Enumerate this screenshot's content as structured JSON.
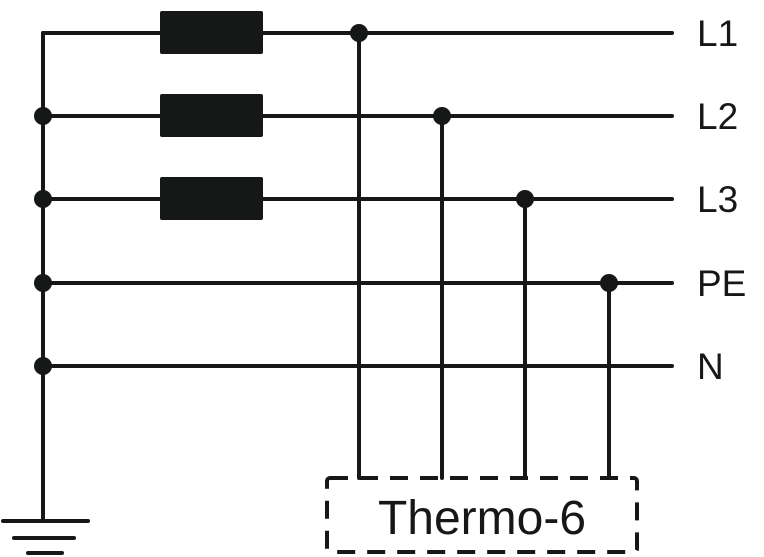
{
  "diagram": {
    "lines": [
      {
        "label": "L1",
        "has_fuse": true
      },
      {
        "label": "L2",
        "has_fuse": true
      },
      {
        "label": "L3",
        "has_fuse": true
      },
      {
        "label": "PE",
        "has_fuse": false
      },
      {
        "label": "N",
        "has_fuse": false
      }
    ],
    "device": {
      "label": "Thermo-6",
      "connects_to": [
        "L1",
        "L2",
        "L3",
        "PE"
      ]
    },
    "ground": true,
    "color": "#161817"
  }
}
